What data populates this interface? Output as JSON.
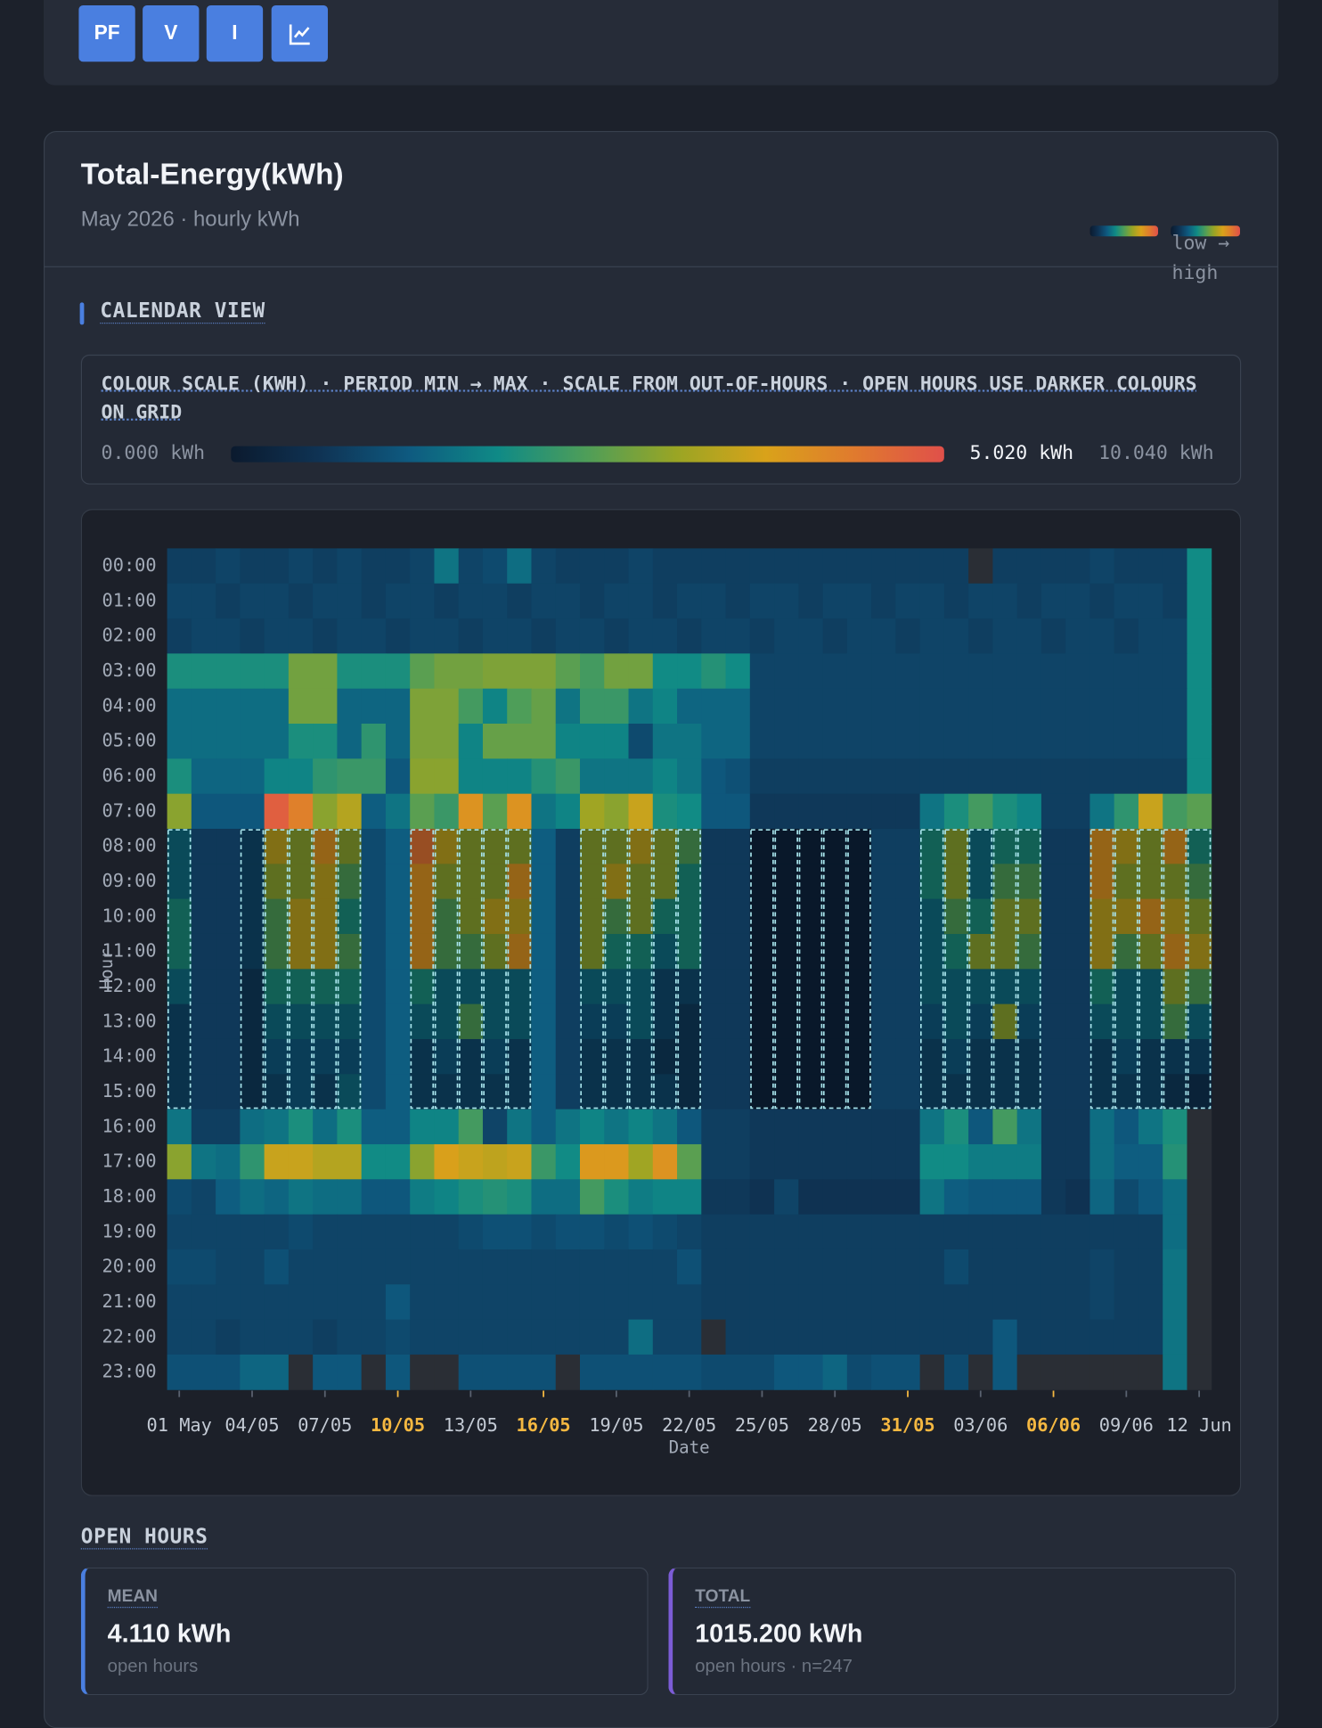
{
  "toolbar": {
    "buttons": [
      "PF",
      "V",
      "I"
    ]
  },
  "card": {
    "title": "Total-Energy(kWh)",
    "subtitle": "May 2026 · hourly kWh",
    "legend_label": "low → high"
  },
  "sections": {
    "calendar": "CALENDAR VIEW",
    "scale_caption": "COLOUR SCALE (KWH) · PERIOD MIN → MAX · SCALE FROM OUT-OF-HOURS · OPEN HOURS USE DARKER COLOURS ON GRID",
    "open_hours": "OPEN HOURS"
  },
  "stats": [
    {
      "label": "MEAN",
      "value": "4.110 kWh",
      "note": "open hours"
    },
    {
      "label": "TOTAL",
      "value": "1015.200 kWh",
      "note": "open hours · n=247"
    }
  ],
  "chart_data": {
    "type": "heatmap",
    "x_label": "Date",
    "y_label": "Hour",
    "categories": [
      "01 May",
      null,
      null,
      "04/05",
      null,
      null,
      "07/05",
      null,
      null,
      "10/05",
      null,
      null,
      "13/05",
      null,
      null,
      "16/05",
      null,
      null,
      "19/05",
      null,
      null,
      "22/05",
      null,
      null,
      "25/05",
      null,
      null,
      "28/05",
      null,
      null,
      "31/05",
      null,
      null,
      "03/06",
      null,
      null,
      "06/06",
      null,
      null,
      "09/06",
      null,
      null,
      "12 Jun"
    ],
    "y_categories": [
      "00:00",
      "01:00",
      "02:00",
      "03:00",
      "04:00",
      "05:00",
      "06:00",
      "07:00",
      "08:00",
      "09:00",
      "10:00",
      "11:00",
      "12:00",
      "13:00",
      "14:00",
      "15:00",
      "16:00",
      "17:00",
      "18:00",
      "19:00",
      "20:00",
      "21:00",
      "22:00",
      "23:00"
    ],
    "values": [
      [
        0.8,
        0.8,
        0.9,
        0.8,
        0.8,
        0.9,
        0.8,
        0.9,
        0.8,
        0.8,
        0.9,
        1.6,
        0.9,
        1.0,
        1.5,
        0.9,
        0.8,
        0.8,
        0.8,
        0.9,
        0.8,
        0.8,
        0.8,
        0.8,
        0.8,
        0.8,
        0.8,
        0.8,
        0.8,
        0.8,
        0.8,
        0.8,
        0.8,
        null,
        0.8,
        0.8,
        0.8,
        0.8,
        0.9,
        0.8,
        0.8,
        0.8,
        1.9
      ],
      [
        0.9,
        0.9,
        0.8,
        0.9,
        0.9,
        0.8,
        0.9,
        0.9,
        0.8,
        0.9,
        0.9,
        0.8,
        0.9,
        0.9,
        0.8,
        0.9,
        0.9,
        0.8,
        0.9,
        0.9,
        0.8,
        0.9,
        0.9,
        0.8,
        0.9,
        0.9,
        0.8,
        0.9,
        0.9,
        0.8,
        0.9,
        0.9,
        0.8,
        0.9,
        0.9,
        0.8,
        0.9,
        0.9,
        0.8,
        0.9,
        0.9,
        0.8,
        1.9
      ],
      [
        0.8,
        0.9,
        0.9,
        0.8,
        0.9,
        0.9,
        0.8,
        0.9,
        0.9,
        0.8,
        0.9,
        0.9,
        0.8,
        0.9,
        0.9,
        0.8,
        0.9,
        0.9,
        0.8,
        0.9,
        0.9,
        0.8,
        0.9,
        0.9,
        0.8,
        0.9,
        0.9,
        0.8,
        0.9,
        0.9,
        0.8,
        0.9,
        0.9,
        0.8,
        0.9,
        0.9,
        0.8,
        0.9,
        0.9,
        0.8,
        0.9,
        0.9,
        1.9
      ],
      [
        2.0,
        2.0,
        2.0,
        2.0,
        2.0,
        2.8,
        2.8,
        2.0,
        2.0,
        2.0,
        2.6,
        2.8,
        2.8,
        2.9,
        2.9,
        2.9,
        2.6,
        2.4,
        2.8,
        2.8,
        1.9,
        1.9,
        2.1,
        1.9,
        0.9,
        0.9,
        0.9,
        0.9,
        0.9,
        0.9,
        0.9,
        0.9,
        0.9,
        0.9,
        0.9,
        0.9,
        0.9,
        0.9,
        0.9,
        0.9,
        0.9,
        0.9,
        1.9
      ],
      [
        1.5,
        1.5,
        1.5,
        1.5,
        1.5,
        2.8,
        2.8,
        1.4,
        1.4,
        1.4,
        2.9,
        2.9,
        2.4,
        1.8,
        2.5,
        2.7,
        1.6,
        2.3,
        2.3,
        1.6,
        1.8,
        1.4,
        1.4,
        1.4,
        0.9,
        0.9,
        0.9,
        0.9,
        0.9,
        0.9,
        0.9,
        0.9,
        0.9,
        0.9,
        0.9,
        0.9,
        0.9,
        0.9,
        0.9,
        0.9,
        0.9,
        0.9,
        1.9
      ],
      [
        1.5,
        1.5,
        1.5,
        1.5,
        1.5,
        2.0,
        2.0,
        1.4,
        2.2,
        1.4,
        2.9,
        2.9,
        1.8,
        2.7,
        2.7,
        2.7,
        1.8,
        1.8,
        1.8,
        1.0,
        1.6,
        1.6,
        1.4,
        1.4,
        0.9,
        0.9,
        0.9,
        0.9,
        0.9,
        0.9,
        0.9,
        0.9,
        0.9,
        0.9,
        0.9,
        0.9,
        0.9,
        0.9,
        0.9,
        0.9,
        0.9,
        0.9,
        1.9
      ],
      [
        2.0,
        1.4,
        1.4,
        1.4,
        1.8,
        1.8,
        2.2,
        2.3,
        2.3,
        1.2,
        3.0,
        3.0,
        1.8,
        1.8,
        1.8,
        2.1,
        2.3,
        1.6,
        1.6,
        1.6,
        1.8,
        1.6,
        1.2,
        1.1,
        0.8,
        0.8,
        0.8,
        0.8,
        0.8,
        0.8,
        0.8,
        0.8,
        0.8,
        0.8,
        0.8,
        0.8,
        0.8,
        0.8,
        0.8,
        0.8,
        0.8,
        0.8,
        1.9
      ],
      [
        3.0,
        1.2,
        1.2,
        1.2,
        4.8,
        4.3,
        3.0,
        3.4,
        1.3,
        1.6,
        2.6,
        2.3,
        4.0,
        2.6,
        4.0,
        1.6,
        1.8,
        3.2,
        3.0,
        3.6,
        2.0,
        1.9,
        1.2,
        1.2,
        0.7,
        0.7,
        0.7,
        0.7,
        0.7,
        0.7,
        0.7,
        1.6,
        2.0,
        2.4,
        2.0,
        1.8,
        0.8,
        0.8,
        1.6,
        2.2,
        3.6,
        2.4,
        2.6
      ],
      [
        3,
        0.7,
        0.7,
        2,
        7,
        6,
        8,
        6,
        1.0,
        1.3,
        9,
        7,
        6,
        6,
        6,
        1.3,
        0.8,
        6,
        6,
        7,
        6,
        5,
        0.7,
        0.7,
        0.5,
        0.5,
        0.5,
        0.5,
        0.5,
        0.8,
        0.8,
        4,
        6,
        3,
        4,
        4,
        0.7,
        0.7,
        8,
        7,
        6,
        8,
        4
      ],
      [
        3,
        0.7,
        0.7,
        2,
        6,
        6,
        7,
        5,
        1.0,
        1.3,
        8,
        6,
        6,
        6,
        8,
        1.3,
        0.8,
        6,
        7,
        6,
        6,
        4,
        0.7,
        0.7,
        0.5,
        0.5,
        0.5,
        0.5,
        0.5,
        0.8,
        0.8,
        4,
        6,
        3,
        5,
        5,
        0.7,
        0.7,
        8,
        6,
        6,
        6,
        5
      ],
      [
        4,
        0.7,
        0.7,
        2,
        5,
        7,
        7,
        4,
        1.0,
        1.3,
        8,
        5,
        6,
        7,
        7,
        1.3,
        0.8,
        6,
        5,
        6,
        4,
        4,
        0.7,
        0.7,
        0.5,
        0.5,
        0.5,
        0.5,
        0.5,
        0.8,
        0.8,
        3,
        5,
        4,
        6,
        6,
        0.7,
        0.7,
        7,
        7,
        8,
        7,
        6
      ],
      [
        4,
        0.7,
        0.7,
        2,
        5,
        7,
        7,
        5,
        1.0,
        1.3,
        8,
        5,
        5,
        6,
        8,
        1.3,
        0.8,
        6,
        4,
        4,
        3,
        4,
        0.7,
        0.7,
        0.5,
        0.5,
        0.5,
        0.5,
        0.5,
        0.8,
        0.8,
        3,
        4,
        6,
        6,
        5,
        0.7,
        0.7,
        7,
        5,
        6,
        8,
        7
      ],
      [
        3,
        0.7,
        0.7,
        1.5,
        4,
        4,
        4,
        4,
        1.0,
        1.3,
        4,
        3,
        3,
        3,
        3,
        1.3,
        0.8,
        3,
        3,
        3,
        2,
        2,
        0.7,
        0.7,
        0.5,
        0.5,
        0.5,
        0.5,
        0.5,
        0.8,
        0.8,
        3,
        3,
        3,
        3,
        3,
        0.7,
        0.7,
        4,
        3,
        3,
        6,
        5
      ],
      [
        2,
        0.7,
        0.7,
        1.5,
        3,
        3,
        3,
        3,
        1.0,
        1.3,
        3,
        3,
        5,
        3,
        3,
        1.3,
        0.8,
        2.5,
        2.5,
        3,
        2,
        1.5,
        0.7,
        0.7,
        0.5,
        0.5,
        0.5,
        0.5,
        0.5,
        0.8,
        0.8,
        2.5,
        3,
        2.5,
        6,
        2.5,
        0.7,
        0.7,
        3,
        3,
        3,
        5,
        3
      ],
      [
        2,
        0.7,
        0.7,
        1.5,
        2.5,
        2.5,
        2.5,
        2.5,
        1.0,
        1.3,
        2,
        2.5,
        2,
        2.5,
        2,
        1.3,
        0.8,
        2,
        2,
        2,
        1.5,
        1.5,
        0.7,
        0.7,
        0.5,
        0.5,
        0.5,
        0.5,
        0.5,
        0.8,
        0.8,
        2,
        2.5,
        2,
        2,
        2,
        0.7,
        0.7,
        2,
        2.5,
        2,
        2,
        2
      ],
      [
        2,
        0.7,
        0.7,
        1.5,
        2,
        2.5,
        2,
        3,
        1.0,
        1.3,
        2,
        2,
        2,
        2,
        2,
        1.3,
        0.8,
        2,
        2,
        2,
        2,
        1.5,
        0.7,
        0.7,
        0.5,
        0.5,
        0.5,
        0.5,
        0.5,
        0.8,
        0.8,
        2,
        2,
        2,
        2,
        2,
        0.7,
        0.7,
        2,
        2,
        2,
        1.5,
        1.2
      ],
      [
        1.6,
        0.8,
        0.8,
        1.5,
        1.6,
        2.0,
        1.5,
        2.0,
        1.3,
        1.3,
        1.8,
        1.8,
        2.4,
        0.9,
        1.6,
        1.3,
        1.6,
        1.8,
        1.6,
        1.8,
        1.6,
        1.2,
        0.8,
        0.8,
        0.7,
        0.7,
        0.7,
        0.7,
        0.7,
        0.7,
        0.7,
        1.6,
        2.0,
        1.2,
        2.4,
        1.6,
        0.7,
        0.7,
        1.5,
        1.2,
        1.6,
        2.0,
        null
      ],
      [
        3.0,
        1.6,
        1.5,
        2.2,
        3.6,
        3.6,
        3.4,
        3.4,
        1.9,
        1.9,
        3.0,
        3.8,
        3.6,
        3.5,
        3.6,
        2.3,
        1.9,
        3.9,
        3.9,
        3.2,
        4.0,
        2.6,
        0.8,
        0.8,
        0.7,
        0.7,
        0.7,
        0.7,
        0.7,
        0.7,
        0.7,
        1.9,
        1.9,
        1.7,
        1.7,
        1.7,
        0.7,
        0.7,
        1.5,
        1.3,
        1.3,
        2.1,
        null
      ],
      [
        1.0,
        0.9,
        1.3,
        1.5,
        1.4,
        1.6,
        1.5,
        1.5,
        1.2,
        1.2,
        1.7,
        1.8,
        2.0,
        2.1,
        2.0,
        1.5,
        1.5,
        2.4,
        2.0,
        1.7,
        1.8,
        1.8,
        0.7,
        0.7,
        0.6,
        0.9,
        0.6,
        0.6,
        0.6,
        0.6,
        0.6,
        1.6,
        1.3,
        1.2,
        1.2,
        1.2,
        0.7,
        0.6,
        1.4,
        1.0,
        1.2,
        1.5,
        null
      ],
      [
        0.9,
        0.9,
        0.9,
        0.9,
        0.9,
        1.0,
        0.9,
        0.9,
        0.9,
        0.9,
        0.9,
        0.9,
        1.0,
        1.1,
        1.1,
        1.0,
        1.1,
        1.1,
        1.0,
        1.1,
        1.0,
        0.9,
        0.8,
        0.8,
        0.8,
        0.8,
        0.8,
        0.8,
        0.8,
        0.8,
        0.8,
        0.8,
        0.8,
        0.8,
        0.8,
        0.8,
        0.8,
        0.8,
        0.8,
        0.8,
        0.8,
        1.5,
        null
      ],
      [
        1.0,
        1.0,
        0.9,
        0.9,
        1.1,
        0.9,
        0.9,
        0.9,
        0.9,
        0.9,
        0.9,
        0.9,
        0.9,
        0.9,
        0.9,
        0.9,
        0.9,
        0.9,
        0.9,
        0.9,
        0.9,
        1.1,
        0.8,
        0.8,
        0.8,
        0.8,
        0.8,
        0.8,
        0.8,
        0.8,
        0.8,
        0.8,
        1.0,
        0.8,
        0.8,
        0.8,
        0.8,
        0.8,
        0.9,
        0.8,
        0.8,
        1.6,
        null
      ],
      [
        0.9,
        0.9,
        0.9,
        0.9,
        0.9,
        0.9,
        0.9,
        0.9,
        0.9,
        1.2,
        0.9,
        0.9,
        0.9,
        0.9,
        0.9,
        0.9,
        0.9,
        0.9,
        0.9,
        0.9,
        0.9,
        0.9,
        0.8,
        0.8,
        0.8,
        0.8,
        0.8,
        0.8,
        0.8,
        0.8,
        0.8,
        0.8,
        0.8,
        0.8,
        0.8,
        0.8,
        0.8,
        0.8,
        0.9,
        0.8,
        0.8,
        1.6,
        null
      ],
      [
        0.9,
        0.9,
        0.8,
        0.9,
        0.9,
        0.9,
        0.8,
        0.9,
        0.9,
        1.0,
        0.9,
        0.9,
        0.9,
        0.9,
        0.9,
        0.9,
        0.9,
        0.9,
        0.9,
        1.5,
        0.9,
        0.9,
        null,
        0.8,
        0.8,
        0.8,
        0.8,
        0.8,
        0.8,
        0.8,
        0.8,
        0.8,
        0.8,
        0.8,
        1.2,
        0.8,
        0.8,
        0.8,
        0.8,
        0.8,
        0.8,
        1.6,
        null
      ],
      [
        1.1,
        1.1,
        1.1,
        1.4,
        1.4,
        null,
        1.2,
        1.2,
        null,
        1.2,
        null,
        null,
        1.1,
        1.1,
        1.1,
        1.1,
        null,
        1.1,
        1.1,
        1.1,
        1.1,
        1.1,
        1.0,
        1.0,
        1.0,
        1.2,
        1.2,
        1.4,
        1.0,
        1.1,
        1.1,
        null,
        1.0,
        null,
        1.2,
        null,
        null,
        null,
        null,
        null,
        null,
        1.6,
        null
      ]
    ],
    "color_scale": {
      "ticks": [
        {
          "value": 0,
          "label": "0.000 kWh"
        },
        {
          "value": 5.02,
          "label": "5.020 kWh"
        },
        {
          "value": 10.04,
          "label": "10.040 kWh"
        }
      ],
      "colors": [
        "#0b1a2e",
        "#0f3354",
        "#0e5a80",
        "#0f8a86",
        "#4f9e58",
        "#9aa524",
        "#d9a21a",
        "#e07a2e",
        "#e0504a"
      ]
    },
    "open_days": [
      0,
      3,
      4,
      5,
      6,
      7,
      10,
      11,
      12,
      13,
      14,
      17,
      18,
      19,
      20,
      21,
      24,
      25,
      26,
      27,
      28,
      31,
      32,
      33,
      34,
      35,
      38,
      39,
      40,
      41,
      42
    ],
    "open_hours": [
      8,
      15
    ],
    "open_box_color": "#a8e4ec",
    "empty_color": "#2a2e35",
    "highlight_days": [
      9,
      15,
      30,
      36
    ],
    "highlight_color": "#f5b841"
  }
}
